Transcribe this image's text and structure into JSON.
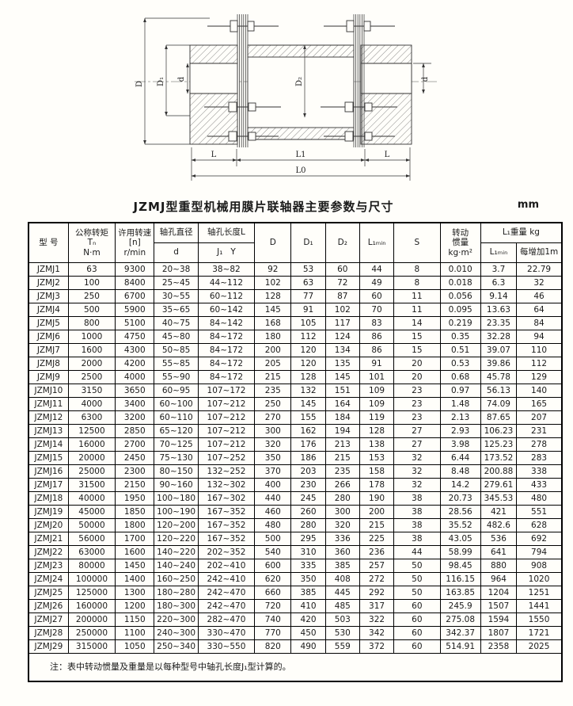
{
  "unit_label": "mm",
  "title": "JZMJ型重型机械用膜片联轴器主要参数与尺寸",
  "note": "注：表中转动惯量及重量是以每种型号中轴孔长度J₁型计算的。",
  "drawing": {
    "labels": {
      "D": "D",
      "D1": "D₁",
      "d_left": "d",
      "D2": "D₂",
      "d_right": "d",
      "L_left": "L",
      "L1": "L1",
      "L_right": "L",
      "L0": "L0"
    }
  },
  "table": {
    "headers": {
      "model": "型 号",
      "torque_line1": "公称转矩",
      "torque_line2": "Tₙ",
      "torque_line3": "N·m",
      "speed_line1": "许用转速",
      "speed_line2": "[n]",
      "speed_line3": "r/min",
      "bore_dia": "轴孔直径",
      "bore_dia_sub": "d",
      "bore_len": "轴孔长度L",
      "bore_len_sub": "J₁   Y",
      "D": "D",
      "D1": "D₁",
      "D2": "D₂",
      "L1min": "L₁ₘᵢₙ",
      "S": "S",
      "inertia_line1": "转动",
      "inertia_line2": "惯量",
      "inertia_line3": "kg·m²",
      "weight_group": "L₁重量  kg",
      "weight_l1min": "L₁ₘᵢₙ",
      "weight_per_m": "每增加1m"
    },
    "rows": [
      [
        "JZMJ1",
        "63",
        "9300",
        "20~38",
        "38~82",
        "92",
        "53",
        "60",
        "44",
        "8",
        "0.010",
        "3.7",
        "22.79"
      ],
      [
        "JZMJ2",
        "100",
        "8400",
        "25~45",
        "44~112",
        "102",
        "63",
        "72",
        "49",
        "8",
        "0.018",
        "6.3",
        "32"
      ],
      [
        "JZMJ3",
        "250",
        "6700",
        "30~55",
        "60~112",
        "128",
        "77",
        "87",
        "60",
        "11",
        "0.056",
        "9.14",
        "46"
      ],
      [
        "JZMJ4",
        "500",
        "5900",
        "35~65",
        "60~142",
        "145",
        "91",
        "102",
        "70",
        "11",
        "0.095",
        "13.63",
        "64"
      ],
      [
        "JZMJ5",
        "800",
        "5100",
        "40~75",
        "84~142",
        "168",
        "105",
        "117",
        "83",
        "14",
        "0.219",
        "23.35",
        "84"
      ],
      [
        "JZMJ6",
        "1000",
        "4750",
        "45~80",
        "84~172",
        "180",
        "112",
        "124",
        "86",
        "15",
        "0.35",
        "32.28",
        "94"
      ],
      [
        "JZMJ7",
        "1600",
        "4300",
        "50~85",
        "84~172",
        "200",
        "120",
        "134",
        "86",
        "15",
        "0.51",
        "39.07",
        "110"
      ],
      [
        "JZMJ8",
        "2000",
        "4200",
        "55~85",
        "84~172",
        "205",
        "120",
        "135",
        "91",
        "20",
        "0.53",
        "39.86",
        "112"
      ],
      [
        "JZMJ9",
        "2500",
        "4000",
        "55~90",
        "84~172",
        "215",
        "128",
        "145",
        "101",
        "20",
        "0.68",
        "45.78",
        "129"
      ],
      [
        "JZMJ10",
        "3150",
        "3650",
        "60~95",
        "107~172",
        "235",
        "132",
        "151",
        "109",
        "23",
        "0.97",
        "56.13",
        "140"
      ],
      [
        "JZMJ11",
        "4000",
        "3400",
        "60~100",
        "107~212",
        "250",
        "145",
        "164",
        "109",
        "23",
        "1.48",
        "74.09",
        "165"
      ],
      [
        "JZMJ12",
        "6300",
        "3200",
        "60~110",
        "107~212",
        "270",
        "155",
        "184",
        "119",
        "23",
        "2.13",
        "87.65",
        "207"
      ],
      [
        "JZMJ13",
        "12500",
        "2850",
        "65~120",
        "107~212",
        "300",
        "162",
        "194",
        "128",
        "27",
        "2.93",
        "106.23",
        "231"
      ],
      [
        "JZMJ14",
        "16000",
        "2700",
        "70~125",
        "107~212",
        "320",
        "176",
        "213",
        "138",
        "27",
        "3.98",
        "125.23",
        "278"
      ],
      [
        "JZMJ15",
        "20000",
        "2450",
        "75~130",
        "107~252",
        "350",
        "186",
        "215",
        "153",
        "32",
        "6.44",
        "173.52",
        "283"
      ],
      [
        "JZMJ16",
        "25000",
        "2300",
        "80~150",
        "132~252",
        "370",
        "203",
        "235",
        "158",
        "32",
        "8.48",
        "200.88",
        "338"
      ],
      [
        "JZMJ17",
        "31500",
        "2150",
        "90~160",
        "132~302",
        "400",
        "230",
        "266",
        "178",
        "32",
        "14.2",
        "279.61",
        "433"
      ],
      [
        "JZMJ18",
        "40000",
        "1950",
        "100~180",
        "167~302",
        "440",
        "245",
        "280",
        "190",
        "38",
        "20.73",
        "345.53",
        "480"
      ],
      [
        "JZMJ19",
        "45000",
        "1850",
        "100~190",
        "167~352",
        "460",
        "260",
        "300",
        "200",
        "38",
        "28.56",
        "421",
        "551"
      ],
      [
        "JZMJ20",
        "50000",
        "1800",
        "120~200",
        "167~352",
        "480",
        "280",
        "320",
        "215",
        "38",
        "35.52",
        "482.6",
        "628"
      ],
      [
        "JZMJ21",
        "56000",
        "1700",
        "120~220",
        "167~352",
        "500",
        "295",
        "336",
        "225",
        "38",
        "43.05",
        "536",
        "692"
      ],
      [
        "JZMJ22",
        "63000",
        "1600",
        "140~220",
        "202~352",
        "540",
        "310",
        "360",
        "236",
        "44",
        "58.99",
        "641",
        "794"
      ],
      [
        "JZMJ23",
        "80000",
        "1450",
        "140~240",
        "202~410",
        "600",
        "335",
        "385",
        "257",
        "50",
        "98.45",
        "880",
        "908"
      ],
      [
        "JZMJ24",
        "100000",
        "1400",
        "160~250",
        "242~410",
        "620",
        "350",
        "408",
        "272",
        "50",
        "116.15",
        "964",
        "1020"
      ],
      [
        "JZMJ25",
        "125000",
        "1300",
        "180~280",
        "242~470",
        "660",
        "385",
        "445",
        "292",
        "50",
        "163.85",
        "1204",
        "1251"
      ],
      [
        "JZMJ26",
        "160000",
        "1200",
        "180~300",
        "242~470",
        "720",
        "410",
        "485",
        "317",
        "60",
        "245.9",
        "1507",
        "1441"
      ],
      [
        "JZMJ27",
        "200000",
        "1150",
        "220~300",
        "282~470",
        "740",
        "420",
        "503",
        "322",
        "60",
        "275.08",
        "1594",
        "1550"
      ],
      [
        "JZMJ28",
        "250000",
        "1100",
        "240~300",
        "330~470",
        "770",
        "450",
        "530",
        "342",
        "60",
        "342.37",
        "1807",
        "1721"
      ],
      [
        "JZMJ29",
        "315000",
        "1050",
        "250~340",
        "330~550",
        "820",
        "490",
        "559",
        "372",
        "60",
        "514.91",
        "2358",
        "2025"
      ]
    ]
  }
}
